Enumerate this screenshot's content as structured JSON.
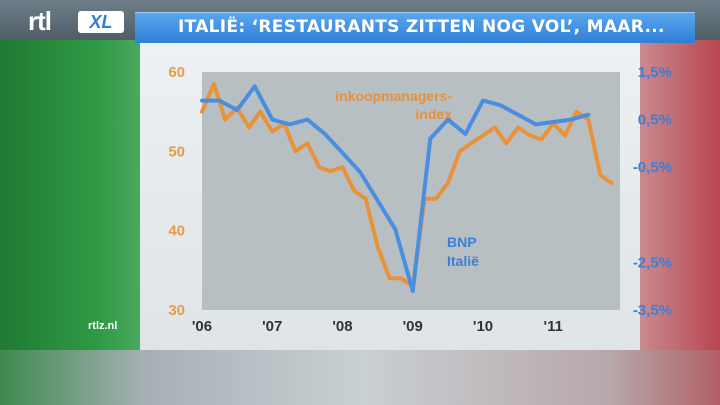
{
  "header": {
    "logo_text": "rtl",
    "logo_badge": "XL",
    "headline": "ITALIË: ‘RESTAURANTS ZITTEN NOG VOL’, MAAR..."
  },
  "footer": {
    "website": "rtlz.nl"
  },
  "colors": {
    "orange_series": "#e8923a",
    "blue_series": "#4a8ee0",
    "headline_bar": "#2f7fd6"
  },
  "chart_data": {
    "type": "line",
    "title": "",
    "x_tick_labels": [
      "'06",
      "'07",
      "'08",
      "'09",
      "'10",
      "'11"
    ],
    "y_left": {
      "ticks": [
        "30",
        "40",
        "50",
        "60"
      ],
      "range": [
        30,
        60
      ]
    },
    "y_right": {
      "ticks": [
        "-3,5%",
        "-2,5%",
        "-0,5%",
        "0,5%",
        "1,5%"
      ],
      "range": [
        -3.5,
        1.5
      ]
    },
    "series": [
      {
        "name": "inkoopmanagers-index",
        "axis": "left",
        "x": [
          2006.0,
          2006.17,
          2006.33,
          2006.5,
          2006.67,
          2006.83,
          2007.0,
          2007.17,
          2007.33,
          2007.5,
          2007.67,
          2007.83,
          2008.0,
          2008.17,
          2008.33,
          2008.5,
          2008.67,
          2008.83,
          2009.0,
          2009.17,
          2009.33,
          2009.5,
          2009.67,
          2009.83,
          2010.0,
          2010.17,
          2010.33,
          2010.5,
          2010.67,
          2010.83,
          2011.0,
          2011.17,
          2011.33,
          2011.5,
          2011.67,
          2011.83
        ],
        "y": [
          55,
          58.5,
          54,
          55.5,
          53,
          55,
          52.5,
          53.5,
          50,
          51,
          48,
          47.5,
          48,
          45,
          44,
          38,
          34,
          34,
          33,
          44,
          44,
          46,
          50,
          51,
          52,
          53,
          51,
          53,
          52,
          51.5,
          53.5,
          52,
          55,
          54,
          47,
          46
        ]
      },
      {
        "name": "BNP Italië",
        "axis": "right",
        "x": [
          2006.0,
          2006.25,
          2006.5,
          2006.75,
          2007.0,
          2007.25,
          2007.5,
          2007.75,
          2008.0,
          2008.25,
          2008.5,
          2008.75,
          2009.0,
          2009.25,
          2009.5,
          2009.75,
          2010.0,
          2010.25,
          2010.5,
          2010.75,
          2011.0,
          2011.25,
          2011.5
        ],
        "y": [
          0.9,
          0.9,
          0.7,
          1.2,
          0.5,
          0.4,
          0.5,
          0.2,
          -0.2,
          -0.6,
          -1.2,
          -1.8,
          -3.1,
          0.1,
          0.5,
          0.2,
          0.9,
          0.8,
          0.6,
          0.4,
          0.45,
          0.5,
          0.6
        ]
      }
    ],
    "annotations": [
      {
        "text": "inkoopmanagers-",
        "series": "inkoopmanagers-index"
      },
      {
        "text": "index",
        "series": "inkoopmanagers-index"
      },
      {
        "text": "BNP",
        "series": "BNP Italië"
      },
      {
        "text": "Italië",
        "series": "BNP Italië"
      }
    ],
    "grid": false,
    "plot_background": "#b8bfc3"
  }
}
